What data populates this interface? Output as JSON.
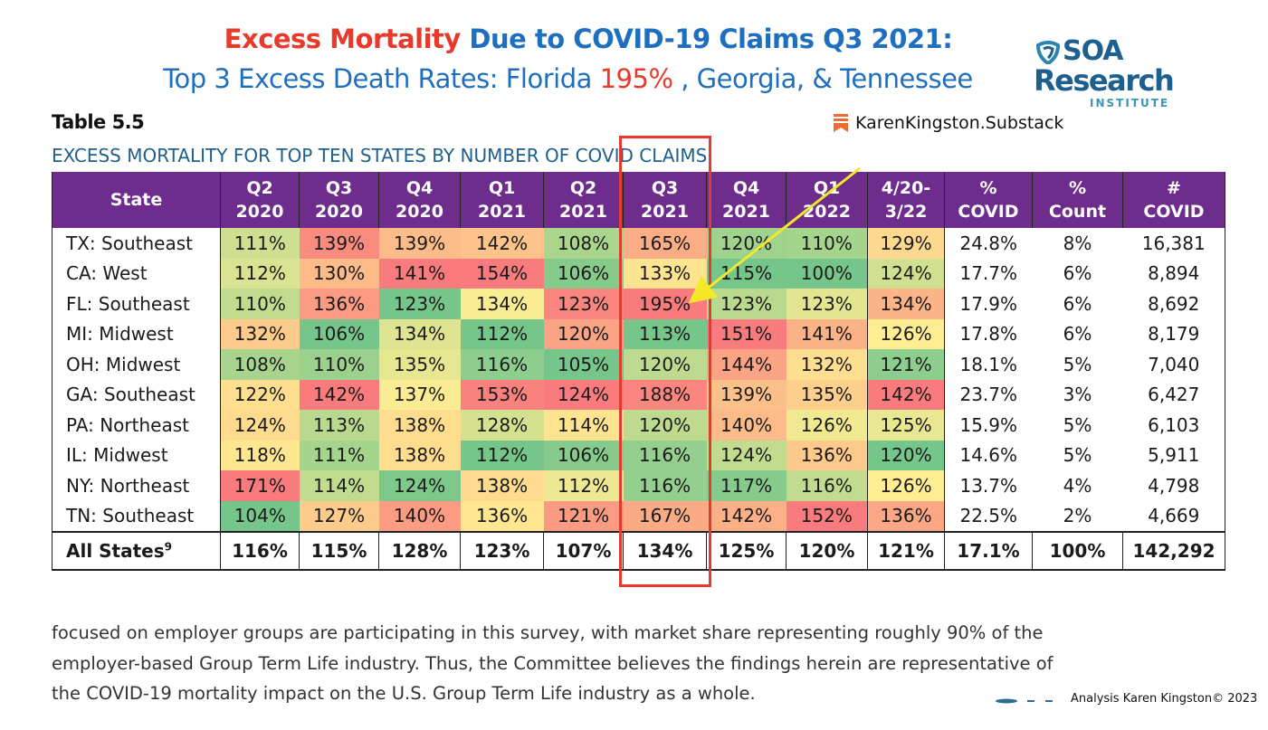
{
  "title": {
    "line1_highlight": "Excess Mortality",
    "line1_rest": " Due to COVID-19 Claims Q3 2021:",
    "line2_start": "Top 3 Excess Death Rates: Florida ",
    "line2_highlight": "195%",
    "line2_end": " , Georgia, & Tennessee"
  },
  "logo": {
    "line1": "SOA",
    "line2": "Research",
    "line3": "INSTITUTE"
  },
  "substack_label": "KarenKingston.Substack",
  "table_label": "Table 5.5",
  "table_subtitle": "EXCESS MORTALITY FOR TOP TEN STATES BY NUMBER OF COVID CLAIMS",
  "colors": {
    "accent_red": "#e8392a",
    "title_blue": "#1f6fc0",
    "header_purple": "#6e2d8c",
    "scale_low": "#63be7b",
    "scale_mid": "#ffeb84",
    "scale_high": "#f8696b"
  },
  "table": {
    "headers": [
      [
        "State"
      ],
      [
        "Q2",
        "2020"
      ],
      [
        "Q3",
        "2020"
      ],
      [
        "Q4",
        "2020"
      ],
      [
        "Q1",
        "2021"
      ],
      [
        "Q2",
        "2021"
      ],
      [
        "Q3",
        "2021"
      ],
      [
        "Q4",
        "2021"
      ],
      [
        "Q1",
        "2022"
      ],
      [
        "4/20-",
        "3/22"
      ],
      [
        "%",
        "COVID"
      ],
      [
        "%",
        "Count"
      ],
      [
        "#",
        "COVID"
      ]
    ],
    "rows": [
      [
        "TX: Southeast",
        "111%",
        "139%",
        "139%",
        "142%",
        "108%",
        "165%",
        "120%",
        "110%",
        "129%",
        "24.8%",
        "8%",
        "16,381"
      ],
      [
        "CA: West",
        "112%",
        "130%",
        "141%",
        "154%",
        "106%",
        "133%",
        "115%",
        "100%",
        "124%",
        "17.7%",
        "6%",
        "8,894"
      ],
      [
        "FL: Southeast",
        "110%",
        "136%",
        "123%",
        "134%",
        "123%",
        "195%",
        "123%",
        "123%",
        "134%",
        "17.9%",
        "6%",
        "8,692"
      ],
      [
        "MI: Midwest",
        "132%",
        "106%",
        "134%",
        "112%",
        "120%",
        "113%",
        "151%",
        "141%",
        "126%",
        "17.8%",
        "6%",
        "8,179"
      ],
      [
        "OH: Midwest",
        "108%",
        "110%",
        "135%",
        "116%",
        "105%",
        "120%",
        "144%",
        "132%",
        "121%",
        "18.1%",
        "5%",
        "7,040"
      ],
      [
        "GA: Southeast",
        "122%",
        "142%",
        "137%",
        "153%",
        "124%",
        "188%",
        "139%",
        "135%",
        "142%",
        "23.7%",
        "3%",
        "6,427"
      ],
      [
        "PA: Northeast",
        "124%",
        "113%",
        "138%",
        "128%",
        "114%",
        "120%",
        "140%",
        "126%",
        "125%",
        "15.9%",
        "5%",
        "6,103"
      ],
      [
        "IL: Midwest",
        "118%",
        "111%",
        "138%",
        "112%",
        "106%",
        "116%",
        "124%",
        "136%",
        "120%",
        "14.6%",
        "5%",
        "5,911"
      ],
      [
        "NY: Northeast",
        "171%",
        "114%",
        "124%",
        "138%",
        "112%",
        "116%",
        "117%",
        "116%",
        "126%",
        "13.7%",
        "4%",
        "4,798"
      ],
      [
        "TN: Southeast",
        "104%",
        "127%",
        "140%",
        "136%",
        "121%",
        "167%",
        "142%",
        "152%",
        "136%",
        "22.5%",
        "2%",
        "4,669"
      ]
    ],
    "total_label": "All States",
    "total_sup": "9",
    "total": [
      "116%",
      "115%",
      "128%",
      "123%",
      "107%",
      "134%",
      "125%",
      "120%",
      "121%",
      "17.1%",
      "100%",
      "142,292"
    ]
  },
  "paragraph": [
    "focused on employer groups are participating in this survey, with market share representing roughly 90% of the",
    "employer-based Group Term Life industry. Thus, the Committee believes the findings herein are representative of",
    "the COVID-19 mortality impact on the U.S. Group Term Life industry as a whole."
  ],
  "credit": "Analysis Karen Kingston© 2023"
}
